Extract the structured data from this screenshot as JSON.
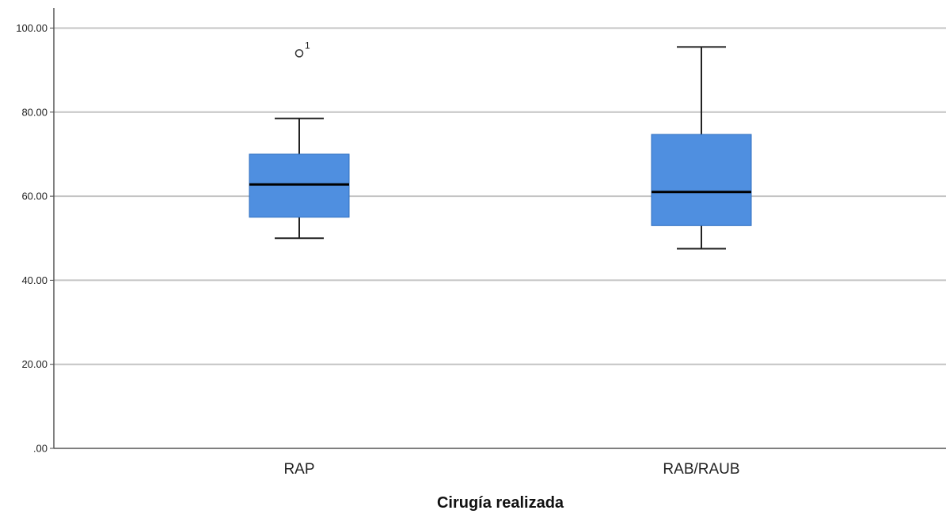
{
  "chart_data": {
    "type": "boxplot",
    "title": "",
    "xlabel": "Cirugía realizada",
    "ylabel": "",
    "ylim": [
      0,
      100
    ],
    "yticks": [
      0,
      20,
      40,
      60,
      80,
      100
    ],
    "ytick_labels": [
      ".00",
      "20.00",
      "40.00",
      "60.00",
      "80.00",
      "100.00"
    ],
    "grid": true,
    "box_color": "#4f8fe0",
    "categories": [
      "RAP",
      "RAB/RAUB"
    ],
    "boxes": [
      {
        "category": "RAP",
        "whisker_low": 50,
        "q1": 55,
        "median": 62.8,
        "q3": 70,
        "whisker_high": 78.5,
        "outliers": [
          {
            "value": 94,
            "label": "1"
          }
        ]
      },
      {
        "category": "RAB/RAUB",
        "whisker_low": 47.5,
        "q1": 53,
        "median": 61,
        "q3": 74.7,
        "whisker_high": 95.5,
        "outliers": []
      }
    ]
  }
}
